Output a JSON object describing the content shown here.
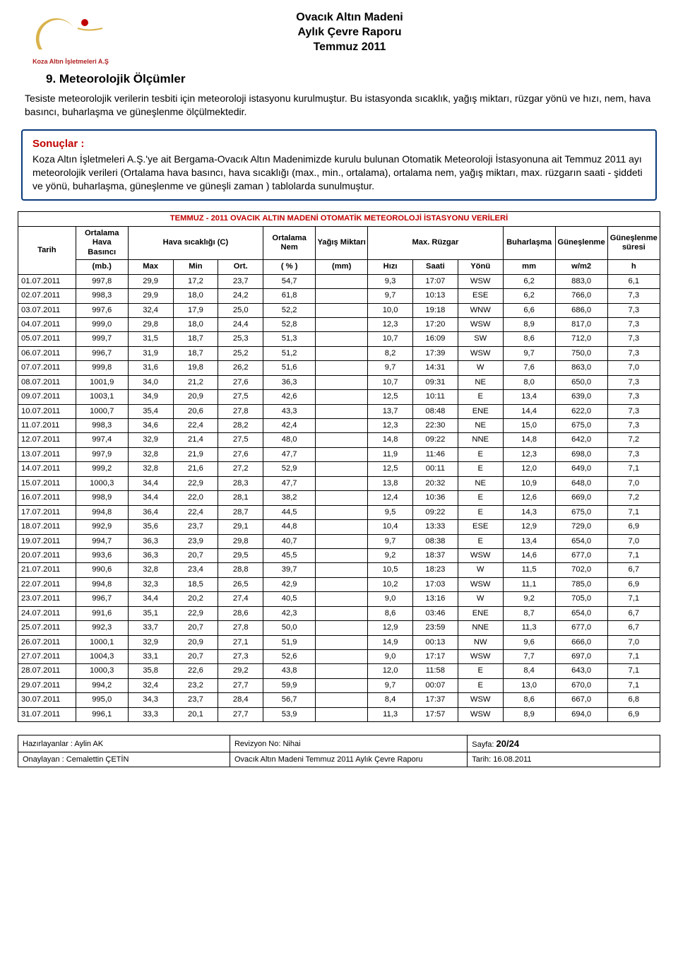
{
  "header": {
    "logo_caption": "Koza Altın İşletmeleri A.Ş",
    "title_line1": "Ovacık Altın Madeni",
    "title_line2": "Aylık Çevre Raporu",
    "title_line3": "Temmuz 2011",
    "logo_colors": {
      "crescent": "#d9b24a",
      "star": "#c00000"
    }
  },
  "section": {
    "title": "9. Meteorolojik Ölçümler",
    "para": "Tesiste meteorolojik verilerin tesbiti için meteoroloji istasyonu kurulmuştur. Bu istasyonda sıcaklık, yağış miktarı, rüzgar yönü ve hızı, nem, hava basıncı, buharlaşma ve güneşlenme ölçülmektedir."
  },
  "results": {
    "heading": "Sonuçlar :",
    "text": "Koza Altın İşletmeleri A.Ş.'ye ait Bergama-Ovacık Altın Madenimizde kurulu bulunan Otomatik Meteoroloji İstasyonuna ait Temmuz 2011 ayı meteorolojik verileri (Ortalama hava basıncı, hava sıcaklığı (max., min., ortalama), ortalama nem, yağış miktarı, max. rüzgarın saati - şiddeti ve yönü, buharlaşma, güneşlenme ve güneşli zaman ) tablolarda sunulmuştur.",
    "border_color": "#0a3a7a",
    "heading_color": "#c00000"
  },
  "table": {
    "title": "TEMMUZ - 2011 OVACIK ALTIN MADENİ OTOMATİK METEOROLOJİ İSTASYONU VERİLERİ",
    "title_color": "#c00000",
    "headers_row1": [
      "Tarih",
      "Ortalama Hava Basıncı",
      "Hava sıcaklığı (C)",
      "Ortalama Nem",
      "Yağış Miktarı",
      "Max. Rüzgar",
      "Buharlaşma",
      "Güneşlenme",
      "Güneşlenme süresi"
    ],
    "headers_row2": [
      "",
      "(mb.)",
      "Max",
      "Min",
      "Ort.",
      "( % )",
      "(mm)",
      "Hızı",
      "Saati",
      "Yönü",
      "mm",
      "w/m2",
      "h"
    ],
    "rows": [
      [
        "01.07.2011",
        "997,8",
        "29,9",
        "17,2",
        "23,7",
        "54,7",
        "",
        "9,3",
        "17:07",
        "WSW",
        "6,2",
        "883,0",
        "6,1"
      ],
      [
        "02.07.2011",
        "998,3",
        "29,9",
        "18,0",
        "24,2",
        "61,8",
        "",
        "9,7",
        "10:13",
        "ESE",
        "6,2",
        "766,0",
        "7,3"
      ],
      [
        "03.07.2011",
        "997,6",
        "32,4",
        "17,9",
        "25,0",
        "52,2",
        "",
        "10,0",
        "19:18",
        "WNW",
        "6,6",
        "686,0",
        "7,3"
      ],
      [
        "04.07.2011",
        "999,0",
        "29,8",
        "18,0",
        "24,4",
        "52,8",
        "",
        "12,3",
        "17:20",
        "WSW",
        "8,9",
        "817,0",
        "7,3"
      ],
      [
        "05.07.2011",
        "999,7",
        "31,5",
        "18,7",
        "25,3",
        "51,3",
        "",
        "10,7",
        "16:09",
        "SW",
        "8,6",
        "712,0",
        "7,3"
      ],
      [
        "06.07.2011",
        "996,7",
        "31,9",
        "18,7",
        "25,2",
        "51,2",
        "",
        "8,2",
        "17:39",
        "WSW",
        "9,7",
        "750,0",
        "7,3"
      ],
      [
        "07.07.2011",
        "999,8",
        "31,6",
        "19,8",
        "26,2",
        "51,6",
        "",
        "9,7",
        "14:31",
        "W",
        "7,6",
        "863,0",
        "7,0"
      ],
      [
        "08.07.2011",
        "1001,9",
        "34,0",
        "21,2",
        "27,6",
        "36,3",
        "",
        "10,7",
        "09:31",
        "NE",
        "8,0",
        "650,0",
        "7,3"
      ],
      [
        "09.07.2011",
        "1003,1",
        "34,9",
        "20,9",
        "27,5",
        "42,6",
        "",
        "12,5",
        "10:11",
        "E",
        "13,4",
        "639,0",
        "7,3"
      ],
      [
        "10.07.2011",
        "1000,7",
        "35,4",
        "20,6",
        "27,8",
        "43,3",
        "",
        "13,7",
        "08:48",
        "ENE",
        "14,4",
        "622,0",
        "7,3"
      ],
      [
        "11.07.2011",
        "998,3",
        "34,6",
        "22,4",
        "28,2",
        "42,4",
        "",
        "12,3",
        "22:30",
        "NE",
        "15,0",
        "675,0",
        "7,3"
      ],
      [
        "12.07.2011",
        "997,4",
        "32,9",
        "21,4",
        "27,5",
        "48,0",
        "",
        "14,8",
        "09:22",
        "NNE",
        "14,8",
        "642,0",
        "7,2"
      ],
      [
        "13.07.2011",
        "997,9",
        "32,8",
        "21,9",
        "27,6",
        "47,7",
        "",
        "11,9",
        "11:46",
        "E",
        "12,3",
        "698,0",
        "7,3"
      ],
      [
        "14.07.2011",
        "999,2",
        "32,8",
        "21,6",
        "27,2",
        "52,9",
        "",
        "12,5",
        "00:11",
        "E",
        "12,0",
        "649,0",
        "7,1"
      ],
      [
        "15.07.2011",
        "1000,3",
        "34,4",
        "22,9",
        "28,3",
        "47,7",
        "",
        "13,8",
        "20:32",
        "NE",
        "10,9",
        "648,0",
        "7,0"
      ],
      [
        "16.07.2011",
        "998,9",
        "34,4",
        "22,0",
        "28,1",
        "38,2",
        "",
        "12,4",
        "10:36",
        "E",
        "12,6",
        "669,0",
        "7,2"
      ],
      [
        "17.07.2011",
        "994,8",
        "36,4",
        "22,4",
        "28,7",
        "44,5",
        "",
        "9,5",
        "09:22",
        "E",
        "14,3",
        "675,0",
        "7,1"
      ],
      [
        "18.07.2011",
        "992,9",
        "35,6",
        "23,7",
        "29,1",
        "44,8",
        "",
        "10,4",
        "13:33",
        "ESE",
        "12,9",
        "729,0",
        "6,9"
      ],
      [
        "19.07.2011",
        "994,7",
        "36,3",
        "23,9",
        "29,8",
        "40,7",
        "",
        "9,7",
        "08:38",
        "E",
        "13,4",
        "654,0",
        "7,0"
      ],
      [
        "20.07.2011",
        "993,6",
        "36,3",
        "20,7",
        "29,5",
        "45,5",
        "",
        "9,2",
        "18:37",
        "WSW",
        "14,6",
        "677,0",
        "7,1"
      ],
      [
        "21.07.2011",
        "990,6",
        "32,8",
        "23,4",
        "28,8",
        "39,7",
        "",
        "10,5",
        "18:23",
        "W",
        "11,5",
        "702,0",
        "6,7"
      ],
      [
        "22.07.2011",
        "994,8",
        "32,3",
        "18,5",
        "26,5",
        "42,9",
        "",
        "10,2",
        "17:03",
        "WSW",
        "11,1",
        "785,0",
        "6,9"
      ],
      [
        "23.07.2011",
        "996,7",
        "34,4",
        "20,2",
        "27,4",
        "40,5",
        "",
        "9,0",
        "13:16",
        "W",
        "9,2",
        "705,0",
        "7,1"
      ],
      [
        "24.07.2011",
        "991,6",
        "35,1",
        "22,9",
        "28,6",
        "42,3",
        "",
        "8,6",
        "03:46",
        "ENE",
        "8,7",
        "654,0",
        "6,7"
      ],
      [
        "25.07.2011",
        "992,3",
        "33,7",
        "20,7",
        "27,8",
        "50,0",
        "",
        "12,9",
        "23:59",
        "NNE",
        "11,3",
        "677,0",
        "6,7"
      ],
      [
        "26.07.2011",
        "1000,1",
        "32,9",
        "20,9",
        "27,1",
        "51,9",
        "",
        "14,9",
        "00:13",
        "NW",
        "9,6",
        "666,0",
        "7,0"
      ],
      [
        "27.07.2011",
        "1004,3",
        "33,1",
        "20,7",
        "27,3",
        "52,6",
        "",
        "9,0",
        "17:17",
        "WSW",
        "7,7",
        "697,0",
        "7,1"
      ],
      [
        "28.07.2011",
        "1000,3",
        "35,8",
        "22,6",
        "29,2",
        "43,8",
        "",
        "12,0",
        "11:58",
        "E",
        "8,4",
        "643,0",
        "7,1"
      ],
      [
        "29.07.2011",
        "994,2",
        "32,4",
        "23,2",
        "27,7",
        "59,9",
        "",
        "9,7",
        "00:07",
        "E",
        "13,0",
        "670,0",
        "7,1"
      ],
      [
        "30.07.2011",
        "995,0",
        "34,3",
        "23,7",
        "28,4",
        "56,7",
        "",
        "8,4",
        "17:37",
        "WSW",
        "8,6",
        "667,0",
        "6,8"
      ],
      [
        "31.07.2011",
        "996,1",
        "33,3",
        "20,1",
        "27,7",
        "53,9",
        "",
        "11,3",
        "17:57",
        "WSW",
        "8,9",
        "694,0",
        "6,9"
      ]
    ]
  },
  "footer": {
    "row1_left": "Hazırlayanlar : Aylin AK",
    "row1_mid": "Revizyon No: Nihai",
    "row1_right_label": "Sayfa: ",
    "row1_right_value": "20/24",
    "row2_left": "Onaylayan : Cemalettin ÇETİN",
    "row2_mid": "Ovacık Altın Madeni Temmuz 2011 Aylık Çevre Raporu",
    "row2_right": "Tarih: 16.08.2011"
  }
}
